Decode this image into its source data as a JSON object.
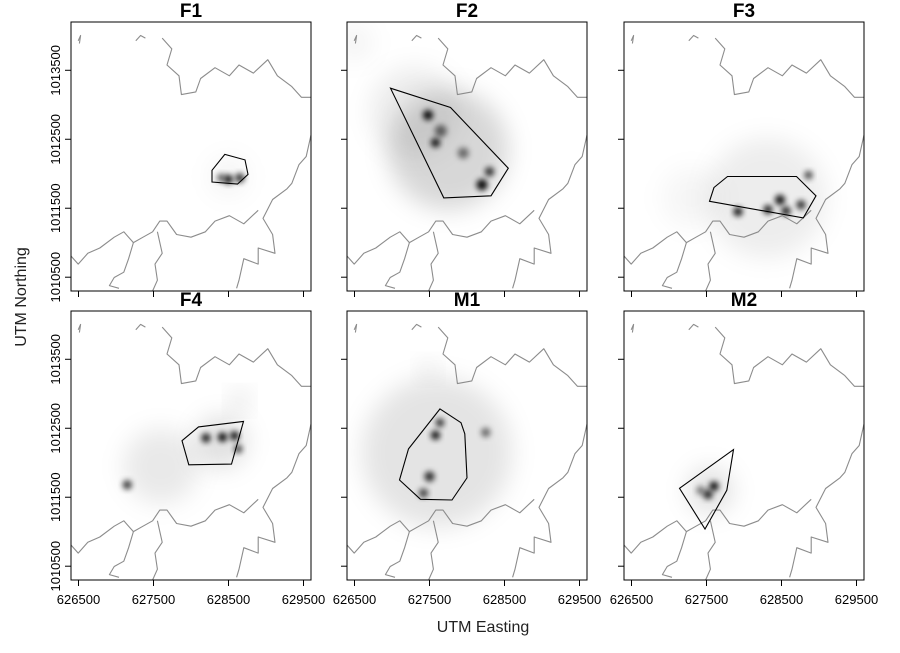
{
  "chart_data": {
    "type": "heatmap",
    "xlabel": "UTM Easting",
    "ylabel": "UTM Northing",
    "xlim": [
      626400,
      629600
    ],
    "ylim": [
      1010300,
      1014200
    ],
    "x_ticks": [
      626500,
      627500,
      628500,
      629500
    ],
    "y_ticks": [
      1010500,
      1011500,
      1012500,
      1013500
    ],
    "grid": false,
    "layout": "2x3 panels",
    "panels": [
      {
        "name": "F1",
        "hull": [
          [
            628280,
            1012050
          ],
          [
            628450,
            1012280
          ],
          [
            628720,
            1012200
          ],
          [
            628760,
            1011990
          ],
          [
            628620,
            1011850
          ],
          [
            628280,
            1011880
          ]
        ],
        "hotspots": [
          [
            628500,
            1011920,
            60,
            0.9
          ],
          [
            628650,
            1011940,
            60,
            0.8
          ],
          [
            628400,
            1011940,
            50,
            0.6
          ]
        ],
        "halo": [
          [
            628500,
            1011960,
            260,
            0.12
          ]
        ]
      },
      {
        "name": "F2",
        "hull": [
          [
            626980,
            1013240
          ],
          [
            627780,
            1012960
          ],
          [
            628550,
            1012080
          ],
          [
            628320,
            1011680
          ],
          [
            627690,
            1011650
          ]
        ],
        "hotspots": [
          [
            627480,
            1012850,
            70,
            0.95
          ],
          [
            627580,
            1012450,
            60,
            0.9
          ],
          [
            628200,
            1011840,
            80,
            0.95
          ],
          [
            628300,
            1012030,
            60,
            0.8
          ],
          [
            627950,
            1012300,
            80,
            0.5
          ],
          [
            627650,
            1012620,
            90,
            0.55
          ]
        ],
        "halo": [
          [
            627750,
            1012350,
            800,
            0.45
          ],
          [
            627300,
            1012900,
            600,
            0.2
          ],
          [
            626500,
            1013900,
            250,
            0.12
          ]
        ]
      },
      {
        "name": "F3",
        "hull": [
          [
            627600,
            1011800
          ],
          [
            627780,
            1011960
          ],
          [
            628700,
            1011960
          ],
          [
            628960,
            1011680
          ],
          [
            628790,
            1011360
          ],
          [
            627540,
            1011600
          ]
        ],
        "hotspots": [
          [
            627920,
            1011450,
            60,
            0.9
          ],
          [
            628320,
            1011480,
            60,
            0.85
          ],
          [
            628480,
            1011620,
            70,
            0.9
          ],
          [
            628560,
            1011460,
            60,
            0.85
          ],
          [
            628760,
            1011550,
            60,
            0.8
          ],
          [
            628860,
            1011980,
            50,
            0.7
          ]
        ],
        "halo": [
          [
            628300,
            1011650,
            800,
            0.2
          ],
          [
            627300,
            1011650,
            400,
            0.1
          ]
        ]
      },
      {
        "name": "F4",
        "hull": [
          [
            627880,
            1012320
          ],
          [
            628100,
            1012520
          ],
          [
            628700,
            1012600
          ],
          [
            628540,
            1011980
          ],
          [
            627970,
            1011970
          ]
        ],
        "hotspots": [
          [
            628200,
            1012360,
            60,
            0.85
          ],
          [
            628420,
            1012370,
            60,
            0.95
          ],
          [
            628580,
            1012390,
            60,
            0.9
          ],
          [
            628630,
            1012200,
            50,
            0.7
          ],
          [
            627150,
            1011680,
            60,
            0.75
          ]
        ],
        "halo": [
          [
            627600,
            1011950,
            500,
            0.25
          ],
          [
            628400,
            1012300,
            350,
            0.35
          ],
          [
            628650,
            1012900,
            120,
            0.4
          ]
        ]
      },
      {
        "name": "M1",
        "hull": [
          [
            627640,
            1012780
          ],
          [
            627920,
            1012580
          ],
          [
            627970,
            1012420
          ],
          [
            628000,
            1011780
          ],
          [
            627800,
            1011460
          ],
          [
            627380,
            1011470
          ],
          [
            627100,
            1011750
          ],
          [
            627220,
            1012200
          ]
        ],
        "hotspots": [
          [
            627580,
            1012400,
            60,
            0.9
          ],
          [
            627640,
            1012580,
            50,
            0.8
          ],
          [
            627500,
            1011800,
            70,
            0.8
          ],
          [
            627420,
            1011560,
            60,
            0.7
          ],
          [
            628250,
            1012440,
            60,
            0.55
          ]
        ],
        "halo": [
          [
            627600,
            1012150,
            1000,
            0.3
          ],
          [
            627480,
            1013350,
            120,
            0.25
          ]
        ]
      },
      {
        "name": "M2",
        "hull": [
          [
            627140,
            1011630
          ],
          [
            627860,
            1012190
          ],
          [
            627770,
            1011600
          ],
          [
            627480,
            1011040
          ]
        ],
        "hotspots": [
          [
            627600,
            1011660,
            60,
            0.95
          ],
          [
            627520,
            1011540,
            60,
            0.85
          ],
          [
            627420,
            1011600,
            50,
            0.5
          ]
        ],
        "halo": [
          [
            627550,
            1011600,
            300,
            0.35
          ]
        ]
      }
    ]
  }
}
